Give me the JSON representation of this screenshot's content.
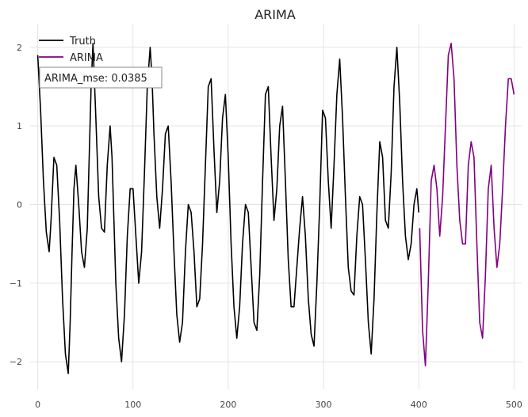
{
  "chart_data": {
    "type": "line",
    "title": "ARIMA",
    "xlabel": "",
    "ylabel": "",
    "xlim": [
      -8,
      508
    ],
    "ylim": [
      -2.35,
      2.3
    ],
    "xticks": [
      0,
      100,
      200,
      300,
      400,
      500
    ],
    "yticks": [
      -2,
      -1,
      0,
      1,
      2
    ],
    "grid": true,
    "legend_position": "top-left",
    "annotation": "ARIMA_mse: 0.0385",
    "series": [
      {
        "name": "Truth",
        "color": "#000000",
        "x": [
          0,
          3,
          6,
          9,
          12,
          14,
          17,
          20,
          23,
          26,
          29,
          32,
          34,
          36,
          38,
          40,
          43,
          46,
          49,
          52,
          54,
          56,
          58,
          61,
          64,
          67,
          70,
          73,
          76,
          78,
          80,
          82,
          85,
          88,
          91,
          94,
          97,
          100,
          103,
          106,
          109,
          112,
          115,
          118,
          120,
          122,
          125,
          128,
          131,
          134,
          137,
          140,
          143,
          146,
          149,
          152,
          155,
          158,
          161,
          164,
          167,
          170,
          173,
          176,
          179,
          182,
          185,
          188,
          191,
          194,
          197,
          200,
          203,
          206,
          209,
          212,
          215,
          218,
          221,
          224,
          227,
          230,
          233,
          236,
          239,
          242,
          245,
          248,
          251,
          254,
          257,
          260,
          263,
          266,
          269,
          272,
          275,
          278,
          281,
          284,
          287,
          290,
          293,
          296,
          299,
          302,
          305,
          308,
          311,
          314,
          317,
          320,
          323,
          326,
          329,
          332,
          335,
          338,
          341,
          344,
          347,
          350,
          353,
          356,
          359,
          362,
          365,
          368,
          371,
          374,
          377,
          380,
          383,
          386,
          389,
          392,
          395,
          398,
          400
        ],
        "y": [
          1.9,
          1.2,
          0.3,
          -0.35,
          -0.6,
          -0.2,
          0.6,
          0.5,
          -0.2,
          -1.2,
          -1.9,
          -2.15,
          -1.5,
          -0.6,
          0.2,
          0.5,
          0.0,
          -0.6,
          -0.8,
          -0.3,
          0.6,
          1.5,
          2.05,
          1.1,
          0.1,
          -0.3,
          -0.35,
          0.5,
          1.0,
          0.6,
          -0.2,
          -1.0,
          -1.7,
          -2.0,
          -1.4,
          -0.4,
          0.2,
          0.2,
          -0.4,
          -1.0,
          -0.6,
          0.4,
          1.5,
          2.0,
          1.6,
          0.9,
          0.1,
          -0.3,
          0.2,
          0.9,
          1.0,
          0.3,
          -0.6,
          -1.4,
          -1.75,
          -1.5,
          -0.6,
          0.0,
          -0.1,
          -0.6,
          -1.3,
          -1.2,
          -0.5,
          0.5,
          1.5,
          1.6,
          0.7,
          -0.1,
          0.3,
          1.1,
          1.4,
          0.6,
          -0.5,
          -1.3,
          -1.7,
          -1.3,
          -0.5,
          0.0,
          -0.1,
          -0.8,
          -1.5,
          -1.6,
          -0.9,
          0.3,
          1.4,
          1.5,
          0.6,
          -0.2,
          0.2,
          1.0,
          1.25,
          0.3,
          -0.7,
          -1.3,
          -1.3,
          -0.8,
          -0.3,
          0.1,
          -0.4,
          -1.2,
          -1.65,
          -1.8,
          -1.0,
          0.0,
          1.2,
          1.1,
          0.3,
          -0.3,
          0.5,
          1.4,
          1.85,
          1.1,
          0.1,
          -0.8,
          -1.1,
          -1.15,
          -0.4,
          0.1,
          0.0,
          -0.7,
          -1.5,
          -1.9,
          -1.2,
          -0.1,
          0.8,
          0.6,
          -0.2,
          -0.3,
          0.4,
          1.5,
          2.0,
          1.3,
          0.3,
          -0.4,
          -0.7,
          -0.5,
          0.0,
          0.2,
          -0.1
        ]
      },
      {
        "name": "ARIMA",
        "color": "#800080",
        "x": [
          401,
          404,
          407,
          410,
          413,
          416,
          419,
          422,
          425,
          428,
          431,
          434,
          437,
          440,
          443,
          446,
          449,
          452,
          455,
          458,
          461,
          464,
          467,
          470,
          473,
          476,
          479,
          482,
          485,
          488,
          491,
          494,
          497,
          500
        ],
        "y": [
          -0.3,
          -1.6,
          -2.05,
          -1.0,
          0.3,
          0.5,
          0.2,
          -0.4,
          0.1,
          1.0,
          1.9,
          2.05,
          1.6,
          0.5,
          -0.2,
          -0.5,
          -0.5,
          0.5,
          0.8,
          0.6,
          -0.5,
          -1.5,
          -1.7,
          -0.9,
          0.2,
          0.5,
          -0.3,
          -0.8,
          -0.5,
          0.2,
          1.0,
          1.6,
          1.6,
          1.4
        ]
      }
    ]
  }
}
